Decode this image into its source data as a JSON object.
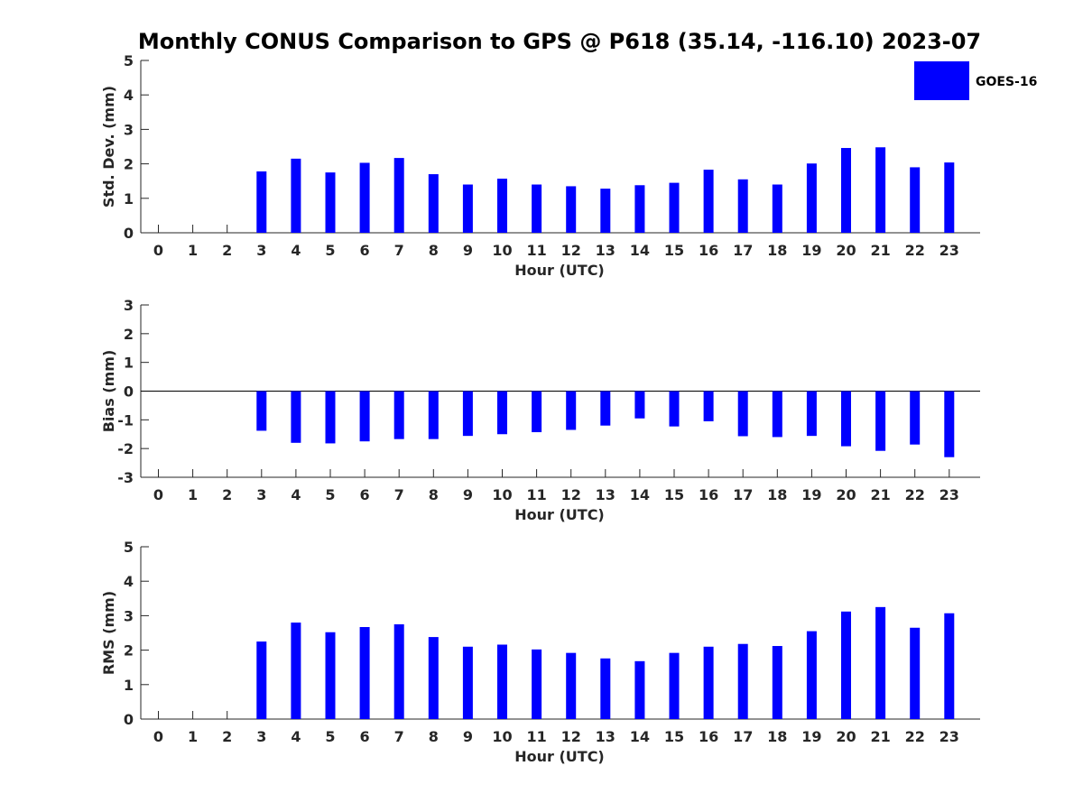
{
  "chart_data": {
    "title": "Monthly CONUS Comparison to GPS @ P618 (35.14, -116.10) 2023-07",
    "legend": {
      "label": "GOES-16",
      "color": "#0000ff",
      "placement": "top-right"
    },
    "categories": [
      "0",
      "1",
      "2",
      "3",
      "4",
      "5",
      "6",
      "7",
      "8",
      "9",
      "10",
      "11",
      "12",
      "13",
      "14",
      "15",
      "16",
      "17",
      "18",
      "19",
      "20",
      "21",
      "22",
      "23"
    ],
    "panels": [
      {
        "type": "bar",
        "xlabel": "Hour (UTC)",
        "ylabel": "Std. Dev. (mm)",
        "ylim": [
          0,
          5
        ],
        "yticks": [
          "0",
          "1",
          "2",
          "3",
          "4",
          "5"
        ],
        "zero_line": false,
        "series": [
          {
            "name": "GOES-16",
            "values": [
              null,
              null,
              null,
              1.78,
              2.15,
              1.75,
              2.03,
              2.17,
              1.7,
              1.4,
              1.57,
              1.4,
              1.35,
              1.28,
              1.38,
              1.45,
              1.83,
              1.55,
              1.4,
              2.01,
              2.46,
              2.48,
              1.9,
              2.04
            ]
          }
        ]
      },
      {
        "type": "bar",
        "xlabel": "Hour (UTC)",
        "ylabel": "Bias (mm)",
        "ylim": [
          -3,
          3
        ],
        "yticks": [
          "-3",
          "-2",
          "-1",
          "0",
          "1",
          "2",
          "3"
        ],
        "zero_line": true,
        "series": [
          {
            "name": "GOES-16",
            "values": [
              null,
              null,
              null,
              -1.38,
              -1.8,
              -1.82,
              -1.75,
              -1.67,
              -1.67,
              -1.56,
              -1.5,
              -1.43,
              -1.35,
              -1.2,
              -0.95,
              -1.23,
              -1.05,
              -1.57,
              -1.6,
              -1.56,
              -1.92,
              -2.08,
              -1.86,
              -2.3
            ]
          }
        ]
      },
      {
        "type": "bar",
        "xlabel": "Hour (UTC)",
        "ylabel": "RMS (mm)",
        "ylim": [
          0,
          5
        ],
        "yticks": [
          "0",
          "1",
          "2",
          "3",
          "4",
          "5"
        ],
        "zero_line": false,
        "series": [
          {
            "name": "GOES-16",
            "values": [
              null,
              null,
              null,
              2.25,
              2.8,
              2.52,
              2.67,
              2.75,
              2.38,
              2.1,
              2.16,
              2.02,
              1.92,
              1.76,
              1.68,
              1.92,
              2.1,
              2.18,
              2.12,
              2.55,
              3.12,
              3.25,
              2.65,
              3.07
            ]
          }
        ]
      }
    ]
  }
}
